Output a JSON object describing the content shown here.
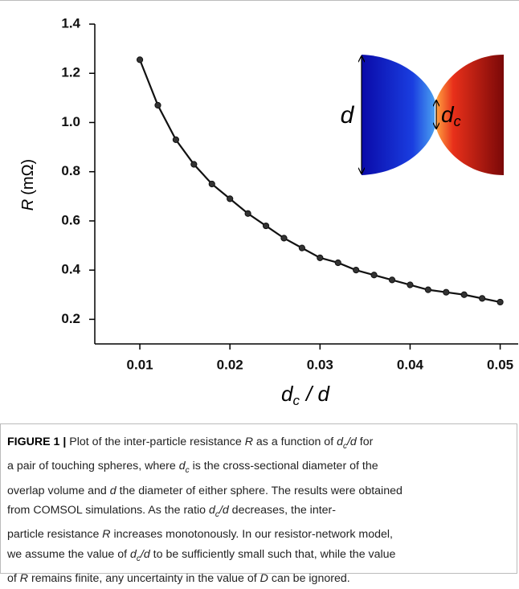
{
  "chart_data": {
    "type": "line",
    "x_label": {
      "base": "d",
      "subscript": "c",
      "rest": "/ d"
    },
    "y_label": {
      "symbol": "R",
      "unit": "(mΩ)"
    },
    "x": [
      0.01,
      0.012,
      0.014,
      0.016,
      0.018,
      0.02,
      0.022,
      0.024,
      0.026,
      0.028,
      0.03,
      0.032,
      0.034,
      0.036,
      0.038,
      0.04,
      0.042,
      0.044,
      0.046,
      0.048,
      0.05
    ],
    "series": [
      {
        "color": "#111111",
        "values": [
          1.255,
          1.07,
          0.93,
          0.83,
          0.75,
          0.69,
          0.63,
          0.58,
          0.53,
          0.49,
          0.45,
          0.43,
          0.4,
          0.38,
          0.36,
          0.34,
          0.32,
          0.31,
          0.3,
          0.285,
          0.27
        ]
      }
    ],
    "xlim": [
      0.005,
      0.052
    ],
    "ylim": [
      0.1,
      1.4
    ],
    "xticks": [
      0.01,
      0.02,
      0.03,
      0.04,
      0.05
    ],
    "yticks": [
      0.2,
      0.4,
      0.6,
      0.8,
      {
        "value": 1.0,
        "label": "1.0"
      },
      1.2,
      1.4
    ],
    "inset": {
      "d_label": "d",
      "dc_label": {
        "base": "d",
        "subscript": "c"
      }
    }
  },
  "caption": {
    "lines": [
      [
        "FIGURE 1 |",
        " Plot of the inter-particle resistance ",
        "R",
        " as a function of ",
        "d",
        "c",
        "/",
        "d",
        " for"
      ],
      [
        "a pair of touching spheres, where ",
        "d",
        "c",
        " is the cross-sectional diameter of the"
      ],
      [
        "overlap volume and ",
        "d",
        " the diameter of either sphere. The results were obtained"
      ],
      [
        "from COMSOL simulations. As the ratio ",
        "d",
        "c",
        "/",
        "d",
        " decreases, the inter-"
      ],
      [
        "particle resistance ",
        "R",
        " increases monotonously. In our resistor-network model,"
      ],
      [
        "we assume the value of ",
        "d",
        "c",
        "/",
        "d",
        " to be sufficiently small such that, while the value"
      ],
      [
        "of ",
        "R",
        " remains finite, any uncertainty in the value of ",
        "D",
        " can be ignored."
      ]
    ]
  }
}
